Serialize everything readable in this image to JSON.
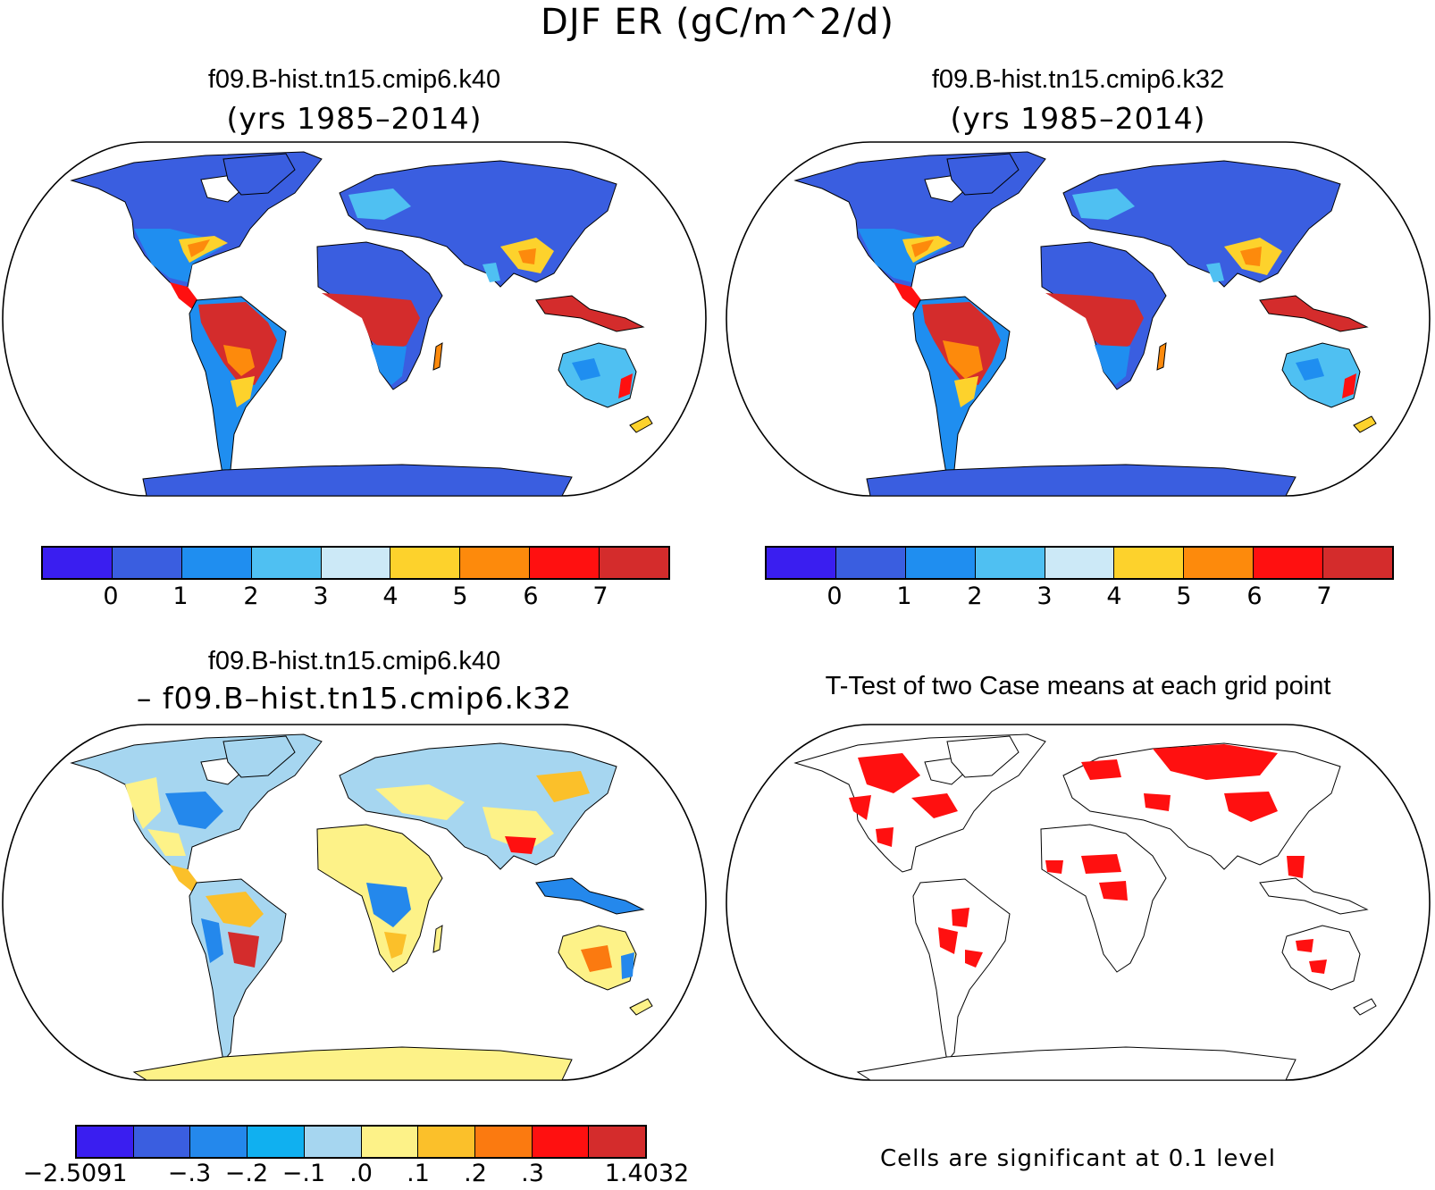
{
  "title": "DJF ER (gC/m^2/d)",
  "panels": {
    "top_left": {
      "title": "f09.B-hist.tn15.cmip6.k40",
      "subtitle": "(yrs 1985–2014)"
    },
    "top_right": {
      "title": "f09.B-hist.tn15.cmip6.k32",
      "subtitle": "(yrs 1985–2014)"
    },
    "bottom_left": {
      "title": "f09.B-hist.tn15.cmip6.k40",
      "subtitle": "– f09.B–hist.tn15.cmip6.k32"
    },
    "bottom_right": {
      "title": "T-Test of two Case means at each grid point",
      "note": "Cells are significant at 0.1 level"
    }
  },
  "colorbars": {
    "absolute": {
      "colors": [
        "#3a1ef0",
        "#3a5ee0",
        "#1f8ef0",
        "#4fc0f2",
        "#cce9f7",
        "#fdd22c",
        "#fd8a0c",
        "#ff1010",
        "#d42c2c"
      ],
      "labels": [
        "0",
        "1",
        "2",
        "3",
        "4",
        "5",
        "6",
        "7"
      ]
    },
    "difference": {
      "colors": [
        "#3a1ef0",
        "#3a5ee0",
        "#2488ec",
        "#10b0f0",
        "#a6d6f0",
        "#fdf288",
        "#fbc02a",
        "#fb7a10",
        "#ff1010",
        "#d42c2c"
      ],
      "labels": [
        "−2.5091",
        "−.3",
        "−.2",
        "−.1",
        ".0",
        ".1",
        ".2",
        ".3",
        "1.4032"
      ]
    }
  },
  "chart_data": [
    {
      "type": "heatmap",
      "title": "f09.B-hist.tn15.cmip6.k40 (yrs 1985–2014)",
      "projection": "Robinson",
      "variable": "DJF ER (gC/m^2/d)",
      "levels": [
        0,
        1,
        2,
        3,
        4,
        5,
        6,
        7
      ],
      "color_range": "0 to >7"
    },
    {
      "type": "heatmap",
      "title": "f09.B-hist.tn15.cmip6.k32 (yrs 1985–2014)",
      "projection": "Robinson",
      "variable": "DJF ER (gC/m^2/d)",
      "levels": [
        0,
        1,
        2,
        3,
        4,
        5,
        6,
        7
      ],
      "color_range": "0 to >7"
    },
    {
      "type": "heatmap",
      "title": "f09.B-hist.tn15.cmip6.k40 – f09.B–hist.tn15.cmip6.k32",
      "projection": "Robinson",
      "levels": [
        -2.5091,
        -0.3,
        -0.2,
        -0.1,
        0.0,
        0.1,
        0.2,
        0.3,
        1.4032
      ],
      "min": -2.5091,
      "max": 1.4032
    },
    {
      "type": "heatmap",
      "title": "T-Test of two Case means at each grid point",
      "projection": "Robinson",
      "significance_level": 0.1
    }
  ]
}
